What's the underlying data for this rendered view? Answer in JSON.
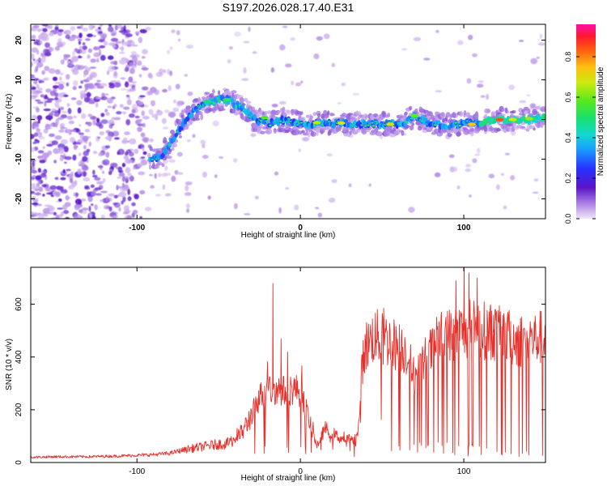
{
  "title": "S197.2026.028.17.40.E31",
  "chart_data": [
    {
      "type": "heatmap",
      "xlabel": "Height of straight line (km)",
      "ylabel": "Frequency (Hz)",
      "xlim": [
        -165,
        150
      ],
      "ylim": [
        -25,
        24
      ],
      "x_ticks": [
        -100,
        0,
        100
      ],
      "y_ticks": [
        -20,
        -10,
        0,
        10,
        20
      ],
      "track": {
        "x": [
          -90,
          -85,
          -80,
          -75,
          -70,
          -65,
          -60,
          -55,
          -50,
          -45,
          -40,
          -35,
          -31,
          -28,
          -25,
          -20,
          -10,
          0,
          10,
          20,
          30,
          40,
          50,
          60,
          70,
          80,
          90,
          100,
          110,
          120,
          130,
          140,
          148
        ],
        "freq": [
          -10,
          -9,
          -6,
          -3,
          0,
          2,
          3.5,
          4.5,
          5,
          5,
          4,
          3,
          1,
          0,
          -0.5,
          -1,
          0,
          -1,
          -1,
          -1,
          -1,
          -1,
          -1,
          -1.5,
          1,
          -1,
          -1.5,
          -1,
          -1,
          0,
          0,
          0,
          0.5
        ]
      },
      "colorbar": {
        "label": "Normalized spectral amplitude",
        "ticks": [
          "0.0",
          "0.2",
          "0.4",
          "0.6",
          "0.8"
        ],
        "range": [
          0,
          0.96
        ]
      }
    },
    {
      "type": "line",
      "xlabel": "Height of straight line (km)",
      "ylabel": "SNR (10 * v/v)",
      "xlim": [
        -165,
        150
      ],
      "ylim": [
        0,
        740
      ],
      "x_ticks": [
        -100,
        0,
        100
      ],
      "y_ticks": [
        0,
        200,
        400,
        600
      ],
      "series": [
        {
          "name": "SNR",
          "color": "#e8302b",
          "x": [
            -165,
            -150,
            -130,
            -110,
            -90,
            -80,
            -70,
            -60,
            -50,
            -45,
            -40,
            -35,
            -30,
            -25,
            -20,
            -15,
            -10,
            -5,
            0,
            5,
            10,
            15,
            20,
            25,
            30,
            35,
            38,
            40,
            45,
            50,
            55,
            60,
            65,
            70,
            75,
            80,
            85,
            90,
            95,
            100,
            105,
            110,
            115,
            120,
            125,
            130,
            135,
            140,
            145,
            150
          ],
          "values": [
            20,
            22,
            22,
            25,
            30,
            35,
            50,
            60,
            70,
            70,
            90,
            120,
            180,
            250,
            270,
            280,
            270,
            280,
            270,
            170,
            60,
            130,
            110,
            90,
            90,
            100,
            380,
            440,
            480,
            470,
            460,
            440,
            420,
            320,
            380,
            420,
            470,
            480,
            490,
            500,
            510,
            500,
            500,
            490,
            480,
            470,
            460,
            470,
            470,
            480
          ]
        }
      ]
    }
  ]
}
